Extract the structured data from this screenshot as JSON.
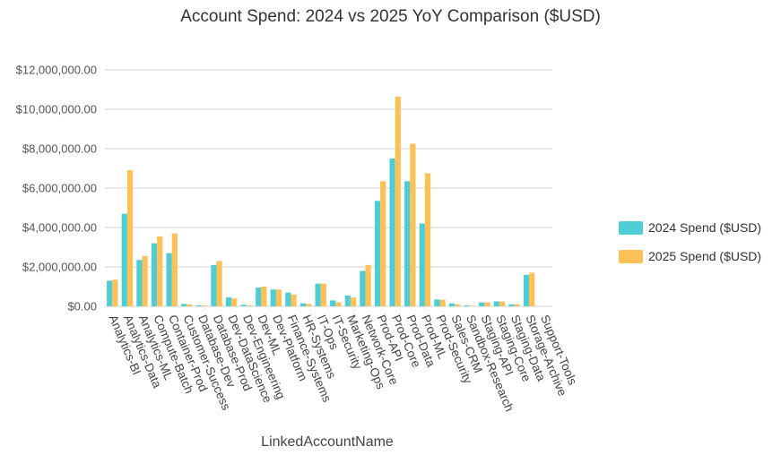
{
  "chart_data": {
    "type": "bar",
    "title": "Account Spend: 2024 vs 2025 YoY Comparison ($USD)",
    "xlabel": "LinkedAccountName",
    "ylabel": "",
    "ylim": [
      0,
      12000000
    ],
    "yticks": [
      "$0.00",
      "$2,000,000.00",
      "$4,000,000.00",
      "$6,000,000.00",
      "$8,000,000.00",
      "$10,000,000.00",
      "$12,000,000.00"
    ],
    "ytick_values": [
      0,
      2000000,
      4000000,
      6000000,
      8000000,
      10000000,
      12000000
    ],
    "grid": "horizontal",
    "legend_position": "right",
    "categories": [
      "Analytics-BI",
      "Analytics-Data",
      "Analytics-ML",
      "Compute-Batch",
      "Container-Prod",
      "Customer-Success",
      "Database-Dev",
      "Database-Prod",
      "Dev-DataScience",
      "Dev-Engineering",
      "Dev-ML",
      "Dev-Platform",
      "Finance-Systems",
      "HR-Systems",
      "IT-Ops",
      "IT-Security",
      "Marketing-Ops",
      "Network-Core",
      "Prod-API",
      "Prod-Core",
      "Prod-Data",
      "Prod-ML",
      "Prod-Security",
      "Sales-CRM",
      "Sandbox-Research",
      "Staging-API",
      "Staging-Core",
      "Staging-Data",
      "Storage-Archive",
      "Support-Tools"
    ],
    "series": [
      {
        "name": "2024 Spend ($USD)",
        "color": "#4ecdd4",
        "values": [
          1300000,
          4700000,
          2350000,
          3200000,
          2700000,
          120000,
          50000,
          2100000,
          450000,
          80000,
          950000,
          850000,
          700000,
          150000,
          1150000,
          300000,
          550000,
          1800000,
          5350000,
          7500000,
          6350000,
          4200000,
          350000,
          150000,
          50000,
          200000,
          250000,
          100000,
          1600000,
          0
        ]
      },
      {
        "name": "2025 Spend ($USD)",
        "color": "#fdc158",
        "values": [
          1350000,
          6900000,
          2550000,
          3550000,
          3700000,
          100000,
          50000,
          2300000,
          400000,
          50000,
          1000000,
          850000,
          600000,
          120000,
          1150000,
          200000,
          450000,
          2100000,
          6350000,
          10650000,
          8250000,
          6750000,
          330000,
          100000,
          30000,
          200000,
          250000,
          100000,
          1700000,
          0
        ]
      }
    ]
  }
}
